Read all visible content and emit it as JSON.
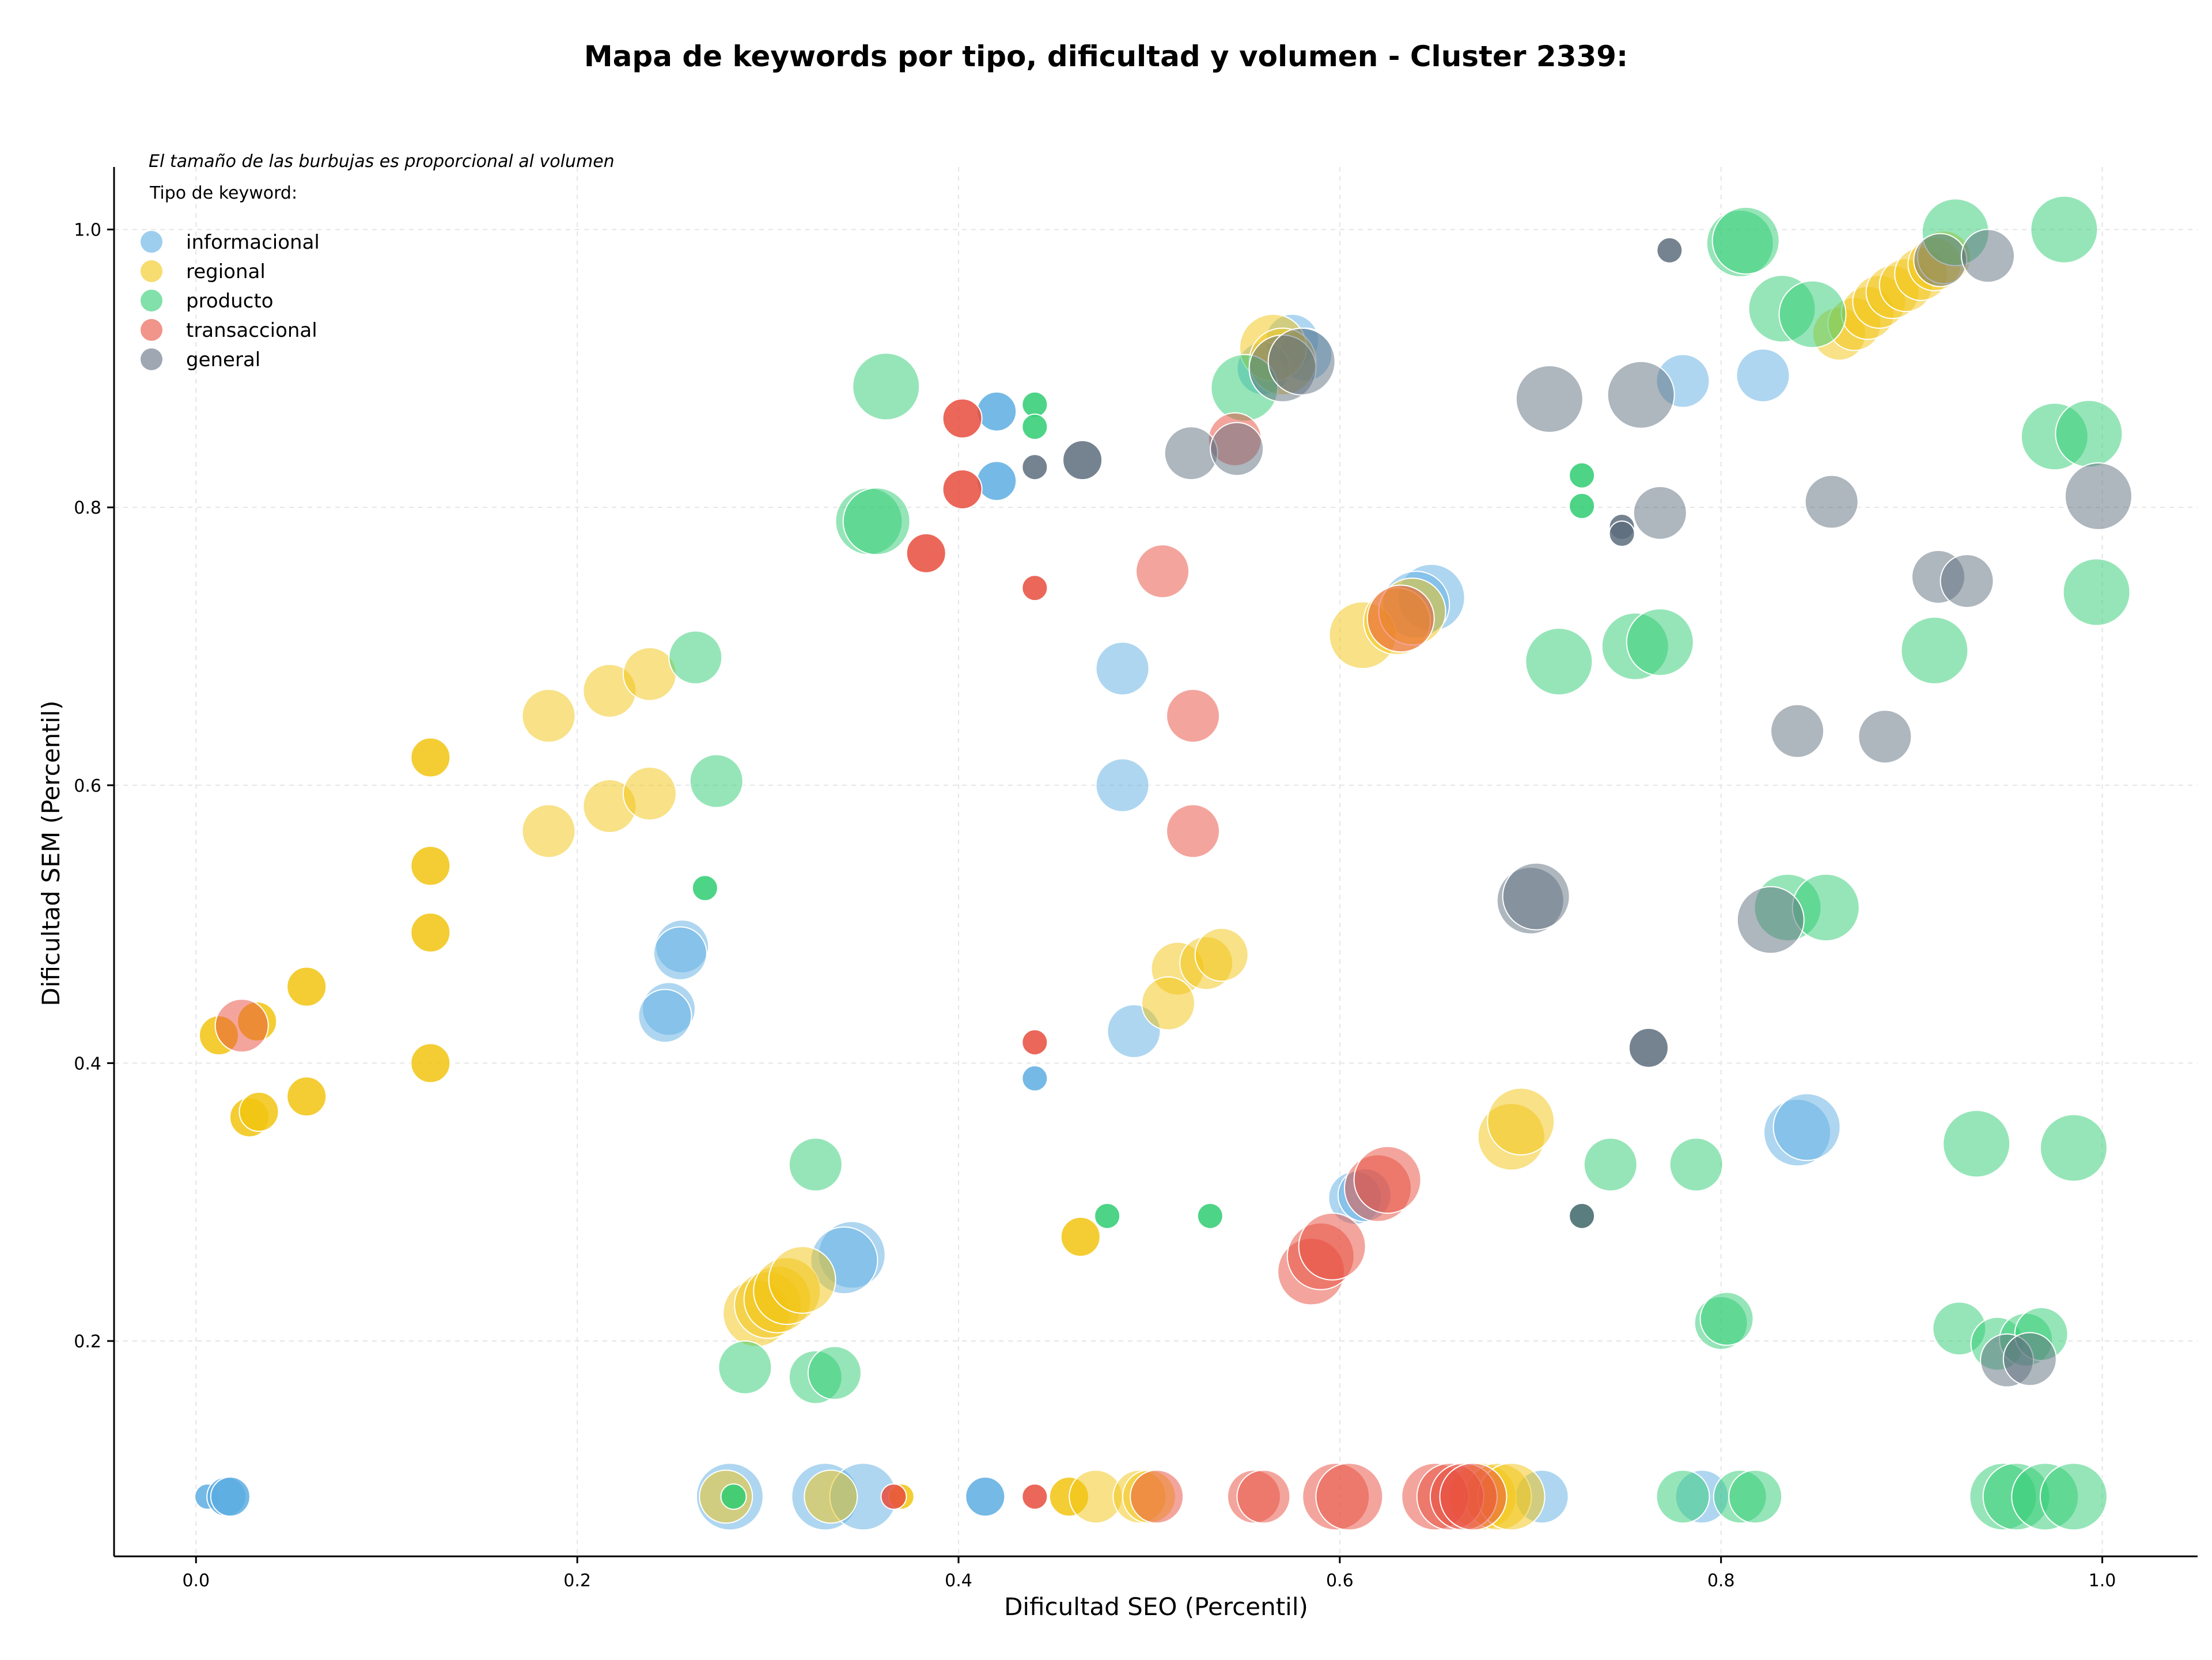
{
  "chart_data": {
    "type": "scatter",
    "title": "Mapa de keywords por tipo, dificultad y volumen - Cluster 2339:",
    "xlabel": "Dificultad SEO (Percentil)",
    "ylabel": "Dificultad SEM (Percentil)",
    "xlim": [
      -0.043,
      1.05
    ],
    "ylim": [
      0.045,
      1.045
    ],
    "xticks": [
      0.0,
      0.2,
      0.4,
      0.6,
      0.8,
      1.0
    ],
    "xtick_labels": [
      "0.0",
      "0.2",
      "0.4",
      "0.6",
      "0.8",
      "1.0"
    ],
    "yticks": [
      0.2,
      0.4,
      0.6,
      0.8,
      1.0
    ],
    "ytick_labels": [
      "0.2",
      "0.4",
      "0.6",
      "0.8",
      "1.0"
    ],
    "grid": true,
    "annotation": "El tamaño de las burbujas es proporcional al volumen",
    "legend_title": "Tipo de keyword:",
    "legend_position": "top-left",
    "series": [
      {
        "name": "informacional",
        "color": "#5DADE2",
        "points": [
          [
            0.006,
            0.088,
            1
          ],
          [
            0.016,
            0.088,
            2
          ],
          [
            0.018,
            0.088,
            2
          ],
          [
            0.28,
            0.088,
            4
          ],
          [
            0.33,
            0.088,
            4
          ],
          [
            0.35,
            0.088,
            4
          ],
          [
            0.414,
            0.088,
            2
          ],
          [
            0.79,
            0.088,
            3
          ],
          [
            0.706,
            0.088,
            3
          ],
          [
            0.255,
            0.484,
            3
          ],
          [
            0.254,
            0.479,
            3
          ],
          [
            0.248,
            0.439,
            3
          ],
          [
            0.246,
            0.434,
            3
          ],
          [
            0.344,
            0.262,
            4
          ],
          [
            0.34,
            0.258,
            4
          ],
          [
            0.42,
            0.869,
            2
          ],
          [
            0.42,
            0.819,
            2
          ],
          [
            0.44,
            0.389,
            1
          ],
          [
            0.486,
            0.684,
            3
          ],
          [
            0.486,
            0.6,
            3
          ],
          [
            0.492,
            0.423,
            3
          ],
          [
            0.575,
            0.92,
            3
          ],
          [
            0.582,
            0.91,
            3
          ],
          [
            0.56,
            0.9,
            3
          ],
          [
            0.648,
            0.735,
            4
          ],
          [
            0.64,
            0.73,
            4
          ],
          [
            0.608,
            0.303,
            3
          ],
          [
            0.613,
            0.305,
            3
          ],
          [
            0.78,
            0.891,
            3
          ],
          [
            0.822,
            0.895,
            3
          ],
          [
            0.84,
            0.35,
            4
          ],
          [
            0.845,
            0.354,
            4
          ]
        ]
      },
      {
        "name": "regional",
        "color": "#F1C40F",
        "points": [
          [
            0.012,
            0.42,
            2
          ],
          [
            0.032,
            0.43,
            2
          ],
          [
            0.028,
            0.361,
            2
          ],
          [
            0.033,
            0.365,
            2
          ],
          [
            0.058,
            0.455,
            2
          ],
          [
            0.058,
            0.376,
            2
          ],
          [
            0.123,
            0.62,
            2
          ],
          [
            0.123,
            0.542,
            2
          ],
          [
            0.123,
            0.494,
            2
          ],
          [
            0.123,
            0.4,
            2
          ],
          [
            0.185,
            0.65,
            3
          ],
          [
            0.185,
            0.567,
            3
          ],
          [
            0.217,
            0.668,
            3
          ],
          [
            0.217,
            0.585,
            3
          ],
          [
            0.238,
            0.68,
            3
          ],
          [
            0.238,
            0.594,
            3
          ],
          [
            0.294,
            0.22,
            4
          ],
          [
            0.3,
            0.226,
            4
          ],
          [
            0.305,
            0.23,
            4
          ],
          [
            0.31,
            0.236,
            4
          ],
          [
            0.318,
            0.244,
            4
          ],
          [
            0.278,
            0.088,
            3
          ],
          [
            0.333,
            0.088,
            3
          ],
          [
            0.37,
            0.088,
            1
          ],
          [
            0.464,
            0.275,
            2
          ],
          [
            0.458,
            0.088,
            2
          ],
          [
            0.472,
            0.088,
            3
          ],
          [
            0.495,
            0.088,
            3
          ],
          [
            0.5,
            0.088,
            3
          ],
          [
            0.515,
            0.468,
            3
          ],
          [
            0.51,
            0.443,
            3
          ],
          [
            0.53,
            0.472,
            3
          ],
          [
            0.538,
            0.478,
            3
          ],
          [
            0.565,
            0.915,
            4
          ],
          [
            0.57,
            0.905,
            4
          ],
          [
            0.612,
            0.708,
            4
          ],
          [
            0.63,
            0.718,
            4
          ],
          [
            0.638,
            0.725,
            4
          ],
          [
            0.69,
            0.347,
            4
          ],
          [
            0.695,
            0.358,
            4
          ],
          [
            0.675,
            0.088,
            4
          ],
          [
            0.683,
            0.088,
            4
          ],
          [
            0.69,
            0.088,
            4
          ],
          [
            0.862,
            0.925,
            3
          ],
          [
            0.87,
            0.932,
            3
          ],
          [
            0.877,
            0.94,
            3
          ],
          [
            0.883,
            0.948,
            3
          ],
          [
            0.89,
            0.955,
            3
          ],
          [
            0.897,
            0.96,
            3
          ],
          [
            0.905,
            0.968,
            3
          ],
          [
            0.912,
            0.975,
            3
          ],
          [
            0.917,
            0.98,
            3
          ]
        ]
      },
      {
        "name": "producto",
        "color": "#2ECC71",
        "points": [
          [
            0.262,
            0.692,
            3
          ],
          [
            0.273,
            0.603,
            3
          ],
          [
            0.267,
            0.526,
            1
          ],
          [
            0.288,
            0.181,
            3
          ],
          [
            0.325,
            0.327,
            3
          ],
          [
            0.325,
            0.174,
            3
          ],
          [
            0.335,
            0.177,
            3
          ],
          [
            0.282,
            0.088,
            1
          ],
          [
            0.353,
            0.79,
            4
          ],
          [
            0.357,
            0.79,
            4
          ],
          [
            0.362,
            0.887,
            4
          ],
          [
            0.44,
            0.874,
            1
          ],
          [
            0.44,
            0.858,
            1
          ],
          [
            0.478,
            0.29,
            1
          ],
          [
            0.532,
            0.29,
            1
          ],
          [
            0.55,
            0.886,
            4
          ],
          [
            0.715,
            0.689,
            4
          ],
          [
            0.727,
            0.823,
            1
          ],
          [
            0.727,
            0.801,
            1
          ],
          [
            0.727,
            0.29,
            1
          ],
          [
            0.742,
            0.327,
            3
          ],
          [
            0.787,
            0.327,
            3
          ],
          [
            0.755,
            0.7,
            4
          ],
          [
            0.768,
            0.703,
            4
          ],
          [
            0.81,
            0.99,
            4
          ],
          [
            0.813,
            0.992,
            4
          ],
          [
            0.832,
            0.943,
            4
          ],
          [
            0.848,
            0.939,
            4
          ],
          [
            0.835,
            0.512,
            4
          ],
          [
            0.855,
            0.512,
            4
          ],
          [
            0.8,
            0.213,
            3
          ],
          [
            0.803,
            0.216,
            3
          ],
          [
            0.78,
            0.088,
            3
          ],
          [
            0.81,
            0.088,
            3
          ],
          [
            0.818,
            0.088,
            3
          ],
          [
            0.912,
            0.697,
            4
          ],
          [
            0.923,
            0.998,
            4
          ],
          [
            0.98,
            1.0,
            4
          ],
          [
            0.975,
            0.851,
            4
          ],
          [
            0.993,
            0.853,
            4
          ],
          [
            0.997,
            0.739,
            4
          ],
          [
            0.934,
            0.342,
            4
          ],
          [
            0.985,
            0.339,
            4
          ],
          [
            0.925,
            0.209,
            3
          ],
          [
            0.945,
            0.198,
            3
          ],
          [
            0.96,
            0.201,
            3
          ],
          [
            0.968,
            0.205,
            3
          ],
          [
            0.948,
            0.088,
            4
          ],
          [
            0.955,
            0.088,
            4
          ],
          [
            0.97,
            0.088,
            4
          ],
          [
            0.985,
            0.088,
            4
          ]
        ]
      },
      {
        "name": "transaccional",
        "color": "#E74C3C",
        "points": [
          [
            0.024,
            0.427,
            3
          ],
          [
            0.366,
            0.088,
            1
          ],
          [
            0.402,
            0.864,
            2
          ],
          [
            0.402,
            0.813,
            2
          ],
          [
            0.383,
            0.767,
            2
          ],
          [
            0.44,
            0.742,
            1
          ],
          [
            0.44,
            0.415,
            1
          ],
          [
            0.44,
            0.088,
            1
          ],
          [
            0.507,
            0.754,
            3
          ],
          [
            0.523,
            0.65,
            3
          ],
          [
            0.523,
            0.567,
            3
          ],
          [
            0.545,
            0.849,
            3
          ],
          [
            0.504,
            0.088,
            3
          ],
          [
            0.555,
            0.088,
            3
          ],
          [
            0.56,
            0.088,
            3
          ],
          [
            0.598,
            0.088,
            4
          ],
          [
            0.605,
            0.088,
            4
          ],
          [
            0.585,
            0.25,
            4
          ],
          [
            0.59,
            0.261,
            4
          ],
          [
            0.596,
            0.268,
            4
          ],
          [
            0.62,
            0.31,
            4
          ],
          [
            0.625,
            0.316,
            4
          ],
          [
            0.632,
            0.72,
            4
          ],
          [
            0.65,
            0.088,
            4
          ],
          [
            0.658,
            0.088,
            4
          ],
          [
            0.665,
            0.088,
            4
          ],
          [
            0.67,
            0.088,
            4
          ]
        ]
      },
      {
        "name": "general",
        "color": "#5D6D7E",
        "points": [
          [
            0.44,
            0.829,
            1
          ],
          [
            0.465,
            0.834,
            2
          ],
          [
            0.522,
            0.839,
            3
          ],
          [
            0.546,
            0.842,
            3
          ],
          [
            0.57,
            0.9,
            4
          ],
          [
            0.58,
            0.905,
            4
          ],
          [
            0.7,
            0.517,
            4
          ],
          [
            0.703,
            0.52,
            4
          ],
          [
            0.71,
            0.878,
            4
          ],
          [
            0.758,
            0.881,
            4
          ],
          [
            0.748,
            0.786,
            1
          ],
          [
            0.748,
            0.781,
            1
          ],
          [
            0.768,
            0.796,
            3
          ],
          [
            0.762,
            0.411,
            2
          ],
          [
            0.773,
            0.985,
            1
          ],
          [
            0.727,
            0.29,
            1
          ],
          [
            0.826,
            0.503,
            4
          ],
          [
            0.84,
            0.639,
            3
          ],
          [
            0.858,
            0.804,
            3
          ],
          [
            0.886,
            0.635,
            3
          ],
          [
            0.914,
            0.75,
            3
          ],
          [
            0.929,
            0.747,
            3
          ],
          [
            0.915,
            0.978,
            3
          ],
          [
            0.94,
            0.981,
            3
          ],
          [
            0.95,
            0.186,
            3
          ],
          [
            0.962,
            0.187,
            3
          ],
          [
            0.998,
            0.808,
            4
          ]
        ]
      }
    ]
  }
}
